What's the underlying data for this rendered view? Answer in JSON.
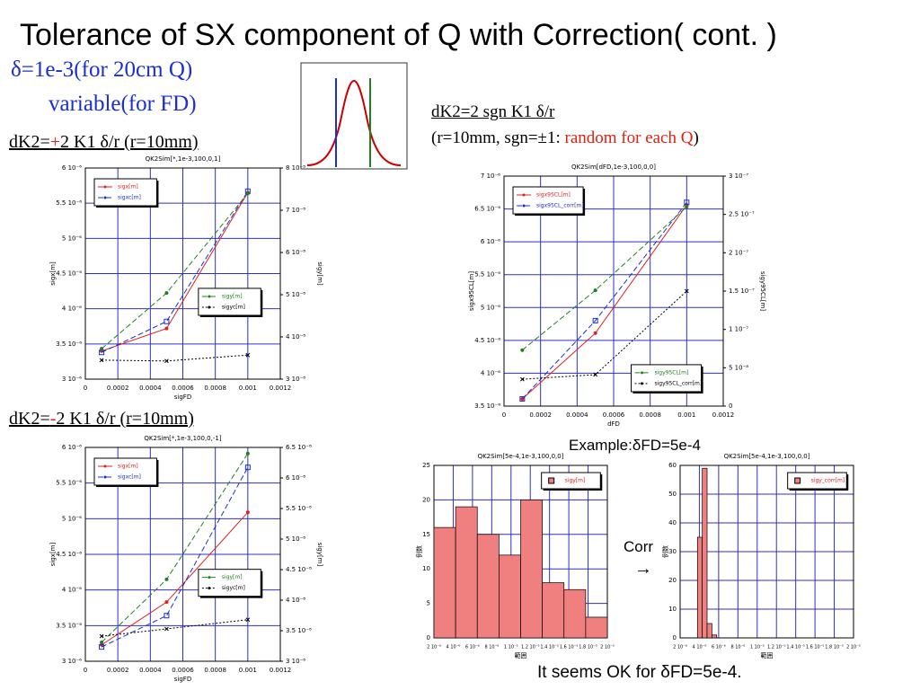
{
  "slide": {
    "title": "Tolerance of SX component of Q with Correction( cont. )",
    "line1": "δ=1e-3(for 20cm Q)",
    "line2": "variable(for FD)",
    "caption1": {
      "a": "dK2=",
      "b": "+",
      "c": "2 K1 δ/r (r=10mm)"
    },
    "caption2": {
      "a": "dK2=",
      "b": "-",
      "c": "2 K1 δ/r (r=10mm)"
    },
    "caption3": "dK2=2 sgn K1 δ/r",
    "caption4": {
      "a": "(r=10mm, sgn=±1: ",
      "b": "random for each Q",
      "c": ")"
    },
    "example": "Example:δFD=5e-4",
    "corr": "Corr",
    "arrow": "→",
    "conclusion": "It seems OK for δFD=5e-4."
  },
  "chart_data": [
    {
      "type": "line",
      "title": "QK2Sim[*,1e-3,100,0,1]",
      "xlabel": "sigFD",
      "ylabel": "sigx[m]",
      "y2label": "sigy[m]",
      "grid": true,
      "x": [
        0.0001,
        0.0005,
        0.001
      ],
      "xlim": [
        0,
        0.0012
      ],
      "xticks": [
        0,
        0.0002,
        0.0004,
        0.0006,
        0.0008,
        0.001,
        0.0012
      ],
      "ylim": [
        3e-06,
        6e-06
      ],
      "yticks": [
        {
          "value": 3e-06,
          "label": "3 10⁻⁶"
        },
        {
          "value": 3.5e-06,
          "label": "3.5 10⁻⁶"
        },
        {
          "value": 4e-06,
          "label": "4 10⁻⁶"
        },
        {
          "value": 4.5e-06,
          "label": "4.5 10⁻⁶"
        },
        {
          "value": 5e-06,
          "label": "5 10⁻⁶"
        },
        {
          "value": 5.5e-06,
          "label": "5.5 10⁻⁶"
        },
        {
          "value": 6e-06,
          "label": "6 10⁻⁶"
        }
      ],
      "y2lim": [
        3e-08,
        8e-08
      ],
      "y2ticks": [
        {
          "value": 3e-08,
          "label": "3 10⁻⁸"
        },
        {
          "value": 4e-08,
          "label": "4 10⁻⁸"
        },
        {
          "value": 5e-08,
          "label": "5 10⁻⁸"
        },
        {
          "value": 6e-08,
          "label": "6 10⁻⁸"
        },
        {
          "value": 7e-08,
          "label": "7 10⁻⁸"
        },
        {
          "value": 8e-08,
          "label": "8 10⁻⁸"
        }
      ],
      "series": [
        {
          "name": "sigx[m]",
          "color": "#e02020",
          "values": [
            3.4e-06,
            3.72e-06,
            5.65e-06
          ]
        },
        {
          "name": "sigxc[m]",
          "color": "#1a2fd0",
          "values": [
            3.38e-06,
            3.82e-06,
            5.67e-06
          ],
          "line_style": "dashed"
        },
        {
          "name": "sigy[m]",
          "color": "#208020",
          "axis": "y2",
          "values": [
            3.72e-08,
            5.04e-08,
            7.4e-08
          ],
          "line_style": "dashed"
        },
        {
          "name": "sigyc[m]",
          "color": "#000000",
          "axis": "y2",
          "values": [
            3.45e-08,
            3.43e-08,
            3.57e-08
          ],
          "line_style": "dotted"
        }
      ]
    },
    {
      "type": "line",
      "title": "QK2Sim[*,1e-3,100,0,-1]",
      "xlabel": "sigFD",
      "ylabel": "sigx[m]",
      "y2label": "sigy[m]",
      "grid": true,
      "x": [
        0.0001,
        0.0005,
        0.001
      ],
      "xlim": [
        0,
        0.0012
      ],
      "xticks": [
        0,
        0.0002,
        0.0004,
        0.0006,
        0.0008,
        0.001,
        0.0012
      ],
      "ylim": [
        3e-06,
        6e-06
      ],
      "yticks": [
        {
          "value": 3e-06,
          "label": "3 10⁻⁶"
        },
        {
          "value": 3.5e-06,
          "label": "3.5 10⁻⁶"
        },
        {
          "value": 4e-06,
          "label": "4 10⁻⁶"
        },
        {
          "value": 4.5e-06,
          "label": "4.5 10⁻⁶"
        },
        {
          "value": 5e-06,
          "label": "5 10⁻⁶"
        },
        {
          "value": 5.5e-06,
          "label": "5.5 10⁻⁶"
        },
        {
          "value": 6e-06,
          "label": "6 10⁻⁶"
        }
      ],
      "y2lim": [
        3e-08,
        6.5e-08
      ],
      "y2ticks": [
        {
          "value": 3e-08,
          "label": "3 10⁻⁸"
        },
        {
          "value": 3.5e-08,
          "label": "3.5 10⁻⁸"
        },
        {
          "value": 4e-08,
          "label": "4 10⁻⁸"
        },
        {
          "value": 4.5e-08,
          "label": "4.5 10⁻⁸"
        },
        {
          "value": 5e-08,
          "label": "5 10⁻⁸"
        },
        {
          "value": 5.5e-08,
          "label": "5.5 10⁻⁸"
        },
        {
          "value": 6e-08,
          "label": "6 10⁻⁸"
        },
        {
          "value": 6.5e-08,
          "label": "6.5 10⁻⁸"
        }
      ],
      "series": [
        {
          "name": "sigx[m]",
          "color": "#e02020",
          "values": [
            3.23e-06,
            3.83e-06,
            5.09e-06
          ]
        },
        {
          "name": "sigxc[m]",
          "color": "#1a2fd0",
          "values": [
            3.2e-06,
            3.64e-06,
            5.72e-06
          ],
          "line_style": "dashed"
        },
        {
          "name": "sigy[m]",
          "color": "#208020",
          "axis": "y2",
          "values": [
            3.31e-08,
            4.34e-08,
            6.4e-08
          ],
          "line_style": "dashed"
        },
        {
          "name": "sigyc[m]",
          "color": "#000000",
          "axis": "y2",
          "values": [
            3.41e-08,
            3.53e-08,
            3.68e-08
          ],
          "line_style": "dotted"
        }
      ]
    },
    {
      "type": "line",
      "title": "QK2Sim[dFD,1e-3,100,0,0]",
      "xlabel": "dFD",
      "ylabel": "sigx95CL[m]",
      "y2label": "sigy95CL[m]",
      "grid": true,
      "x": [
        0.0001,
        0.0005,
        0.001
      ],
      "xlim": [
        0,
        0.0012
      ],
      "xticks": [
        0,
        0.0002,
        0.0004,
        0.0006,
        0.0008,
        0.001,
        0.0012
      ],
      "ylim": [
        3.5e-06,
        7e-06
      ],
      "yticks": [
        {
          "value": 3.5e-06,
          "label": "3.5 10⁻⁶"
        },
        {
          "value": 4e-06,
          "label": "4 10⁻⁶"
        },
        {
          "value": 4.5e-06,
          "label": "4.5 10⁻⁶"
        },
        {
          "value": 5e-06,
          "label": "5 10⁻⁶"
        },
        {
          "value": 5.5e-06,
          "label": "5.5 10⁻⁶"
        },
        {
          "value": 6e-06,
          "label": "6 10⁻⁶"
        },
        {
          "value": 6.5e-06,
          "label": "6.5 10⁻⁶"
        },
        {
          "value": 7e-06,
          "label": "7 10⁻⁶"
        }
      ],
      "y2lim": [
        0,
        3e-07
      ],
      "y2ticks": [
        0,
        {
          "value": 5e-08,
          "label": "5 10⁻⁸"
        },
        {
          "value": 1e-07,
          "label": "1 10⁻⁷"
        },
        {
          "value": 1.5e-07,
          "label": "1.5 10⁻⁷"
        },
        {
          "value": 2e-07,
          "label": "2 10⁻⁷"
        },
        {
          "value": 2.5e-07,
          "label": "2.5 10⁻⁷"
        },
        {
          "value": 3e-07,
          "label": "3 10⁻⁷"
        }
      ],
      "series": [
        {
          "name": "sigx95CL[m]",
          "color": "#e02020",
          "values": [
            3.61e-06,
            4.61e-06,
            6.56e-06
          ]
        },
        {
          "name": "sigx95CL_corr[m]",
          "color": "#1a2fd0",
          "values": [
            3.61e-06,
            4.8e-06,
            6.6e-06
          ],
          "line_style": "dashed"
        },
        {
          "name": "sigy95CL[m]",
          "color": "#208020",
          "axis": "y2",
          "values": [
            7.3e-08,
            1.51e-07,
            2.6e-07
          ],
          "line_style": "dashed"
        },
        {
          "name": "sigy95CL_corr[m]",
          "color": "#000000",
          "axis": "y2",
          "values": [
            3.5e-08,
            4.1e-08,
            1.5e-07
          ],
          "line_style": "dotted"
        }
      ]
    },
    {
      "type": "histogram",
      "title": "QK2Sim[5e-4,1e-3,100,0,0]",
      "xlabel": "範囲",
      "ylabel": "例数",
      "name": "sigy[m]",
      "color": "#f08080",
      "grid": true,
      "bins": [
        2e-06,
        4.25e-06,
        6.5e-06,
        8.75e-06,
        1.1e-05,
        1.325e-05,
        1.55e-05,
        1.775e-05,
        2e-05
      ],
      "counts": [
        16,
        19,
        15,
        12,
        20,
        8,
        7,
        3
      ],
      "xlim": [
        2e-06,
        2e-05
      ],
      "xticks": [
        {
          "value": 2e-06,
          "label": "2 10⁻⁶"
        },
        {
          "value": 4e-06,
          "label": "4 10⁻⁶"
        },
        {
          "value": 6e-06,
          "label": "6 10⁻⁶"
        },
        {
          "value": 8e-06,
          "label": "8 10⁻⁶"
        },
        {
          "value": 1e-05,
          "label": "1 10⁻⁵"
        },
        {
          "value": 1.2e-05,
          "label": "1.2 10⁻⁵"
        },
        {
          "value": 1.4e-05,
          "label": "1.4 10⁻⁵"
        },
        {
          "value": 1.6e-05,
          "label": "1.6 10⁻⁵"
        },
        {
          "value": 1.8e-05,
          "label": "1.8 10⁻⁵"
        },
        {
          "value": 2e-05,
          "label": "2 10⁻⁵"
        }
      ],
      "ylim": [
        0,
        25
      ],
      "yticks": [
        0,
        5,
        10,
        15,
        20,
        25
      ]
    },
    {
      "type": "histogram",
      "title": "QK2Sim[5e-4,1e-3,100,0,0]",
      "xlabel": "範囲",
      "ylabel": "例数",
      "name": "sigy_corr[m]",
      "color": "#f08080",
      "grid": true,
      "bins": [
        3.8e-06,
        4.3e-06,
        4.8e-06,
        5.3e-06,
        5.8e-06
      ],
      "counts": [
        35,
        59,
        5,
        1
      ],
      "xlim": [
        2e-06,
        2e-05
      ],
      "xticks": [
        {
          "value": 2e-06,
          "label": "2 10⁻⁶"
        },
        {
          "value": 4e-06,
          "label": "4 10⁻⁶"
        },
        {
          "value": 6e-06,
          "label": "6 10⁻⁶"
        },
        {
          "value": 8e-06,
          "label": "8 10⁻⁶"
        },
        {
          "value": 1e-05,
          "label": "1 10⁻⁵"
        },
        {
          "value": 1.2e-05,
          "label": "1.2 10⁻⁵"
        },
        {
          "value": 1.4e-05,
          "label": "1.4 10⁻⁵"
        },
        {
          "value": 1.6e-05,
          "label": "1.6 10⁻⁵"
        },
        {
          "value": 1.8e-05,
          "label": "1.8 10⁻⁵"
        },
        {
          "value": 2e-05,
          "label": "2 10⁻⁵"
        }
      ],
      "ylim": [
        0,
        60
      ],
      "yticks": [
        0,
        10,
        20,
        30,
        40,
        50,
        60
      ]
    }
  ]
}
